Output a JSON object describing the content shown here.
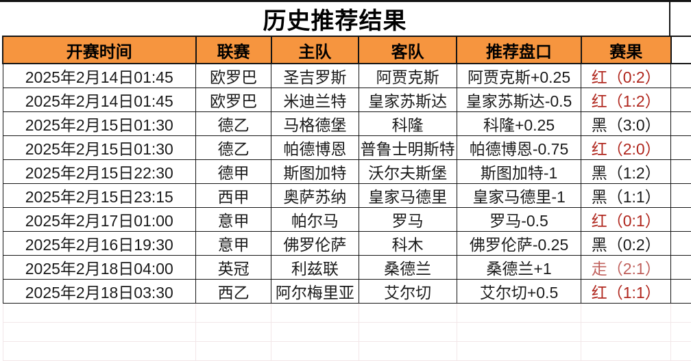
{
  "title": "历史推荐结果",
  "colors": {
    "header_bg": "#F6953F",
    "result_red": "#B0261D",
    "result_walk": "#C0605C",
    "result_black": "#1A1A1A",
    "table_border": "#141414",
    "empty_gridline": "#F2E6E8"
  },
  "table": {
    "headers": [
      "开赛时间",
      "联赛",
      "主队",
      "客队",
      "推荐盘口",
      "赛果"
    ],
    "rows": [
      {
        "time": "2025年2月14日01:45",
        "league": "欧罗巴",
        "home": "圣吉罗斯",
        "away": "阿贾克斯",
        "handicap": "阿贾克斯+0.25",
        "result": "红（0:2）",
        "result_color": "#B0261D"
      },
      {
        "time": "2025年2月14日01:45",
        "league": "欧罗巴",
        "home": "米迪兰特",
        "away": "皇家苏斯达",
        "handicap": "皇家苏斯达-0.5",
        "result": "红（1:2）",
        "result_color": "#B0261D"
      },
      {
        "time": "2025年2月15日01:30",
        "league": "德乙",
        "home": "马格德堡",
        "away": "科隆",
        "handicap": "科隆+0.25",
        "result": "黑（3:0）",
        "result_color": "#1A1A1A"
      },
      {
        "time": "2025年2月15日01:30",
        "league": "德乙",
        "home": "帕德博恩",
        "away": "普鲁士明斯特",
        "handicap": "帕德博恩-0.75",
        "result": "红（2:0）",
        "result_color": "#B0261D"
      },
      {
        "time": "2025年2月15日22:30",
        "league": "德甲",
        "home": "斯图加特",
        "away": "沃尔夫斯堡",
        "handicap": "斯图加特-1",
        "result": "黑（1:2）",
        "result_color": "#1A1A1A"
      },
      {
        "time": "2025年2月15日23:15",
        "league": "西甲",
        "home": "奥萨苏纳",
        "away": "皇家马德里",
        "handicap": "皇家马德里-1",
        "result": "黑（1:1）",
        "result_color": "#1A1A1A"
      },
      {
        "time": "2025年2月17日01:00",
        "league": "意甲",
        "home": "帕尔马",
        "away": "罗马",
        "handicap": "罗马-0.5",
        "result": "红（0:1）",
        "result_color": "#B0261D"
      },
      {
        "time": "2025年2月16日19:30",
        "league": "意甲",
        "home": "佛罗伦萨",
        "away": "科木",
        "handicap": "佛罗伦萨-0.25",
        "result": "黑（0:2）",
        "result_color": "#1A1A1A"
      },
      {
        "time": "2025年2月18日04:00",
        "league": "英冠",
        "home": "利兹联",
        "away": "桑德兰",
        "handicap": "桑德兰+1",
        "result": "走（2:1）",
        "result_color": "#C0605C"
      },
      {
        "time": "2025年2月18日03:30",
        "league": "西乙",
        "home": "阿尔梅里亚",
        "away": "艾尔切",
        "handicap": "艾尔切+0.5",
        "result": "红（1:1）",
        "result_color": "#B0261D"
      }
    ]
  }
}
